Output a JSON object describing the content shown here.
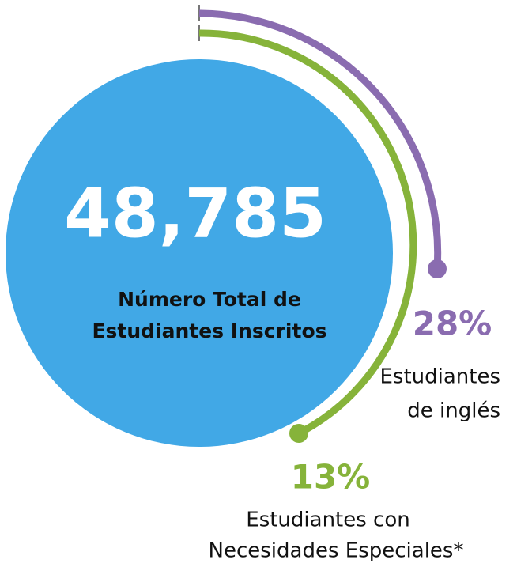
{
  "total": {
    "value": "48,785",
    "label": [
      "Número Total de",
      "Estudiantes Inscritos"
    ]
  },
  "groups": [
    {
      "percent": "28%",
      "label": [
        "Estudiantes",
        "de inglés"
      ]
    },
    {
      "percent": "13%",
      "label": [
        "Estudiantes con",
        "Necesidades Especiales*"
      ]
    }
  ]
}
